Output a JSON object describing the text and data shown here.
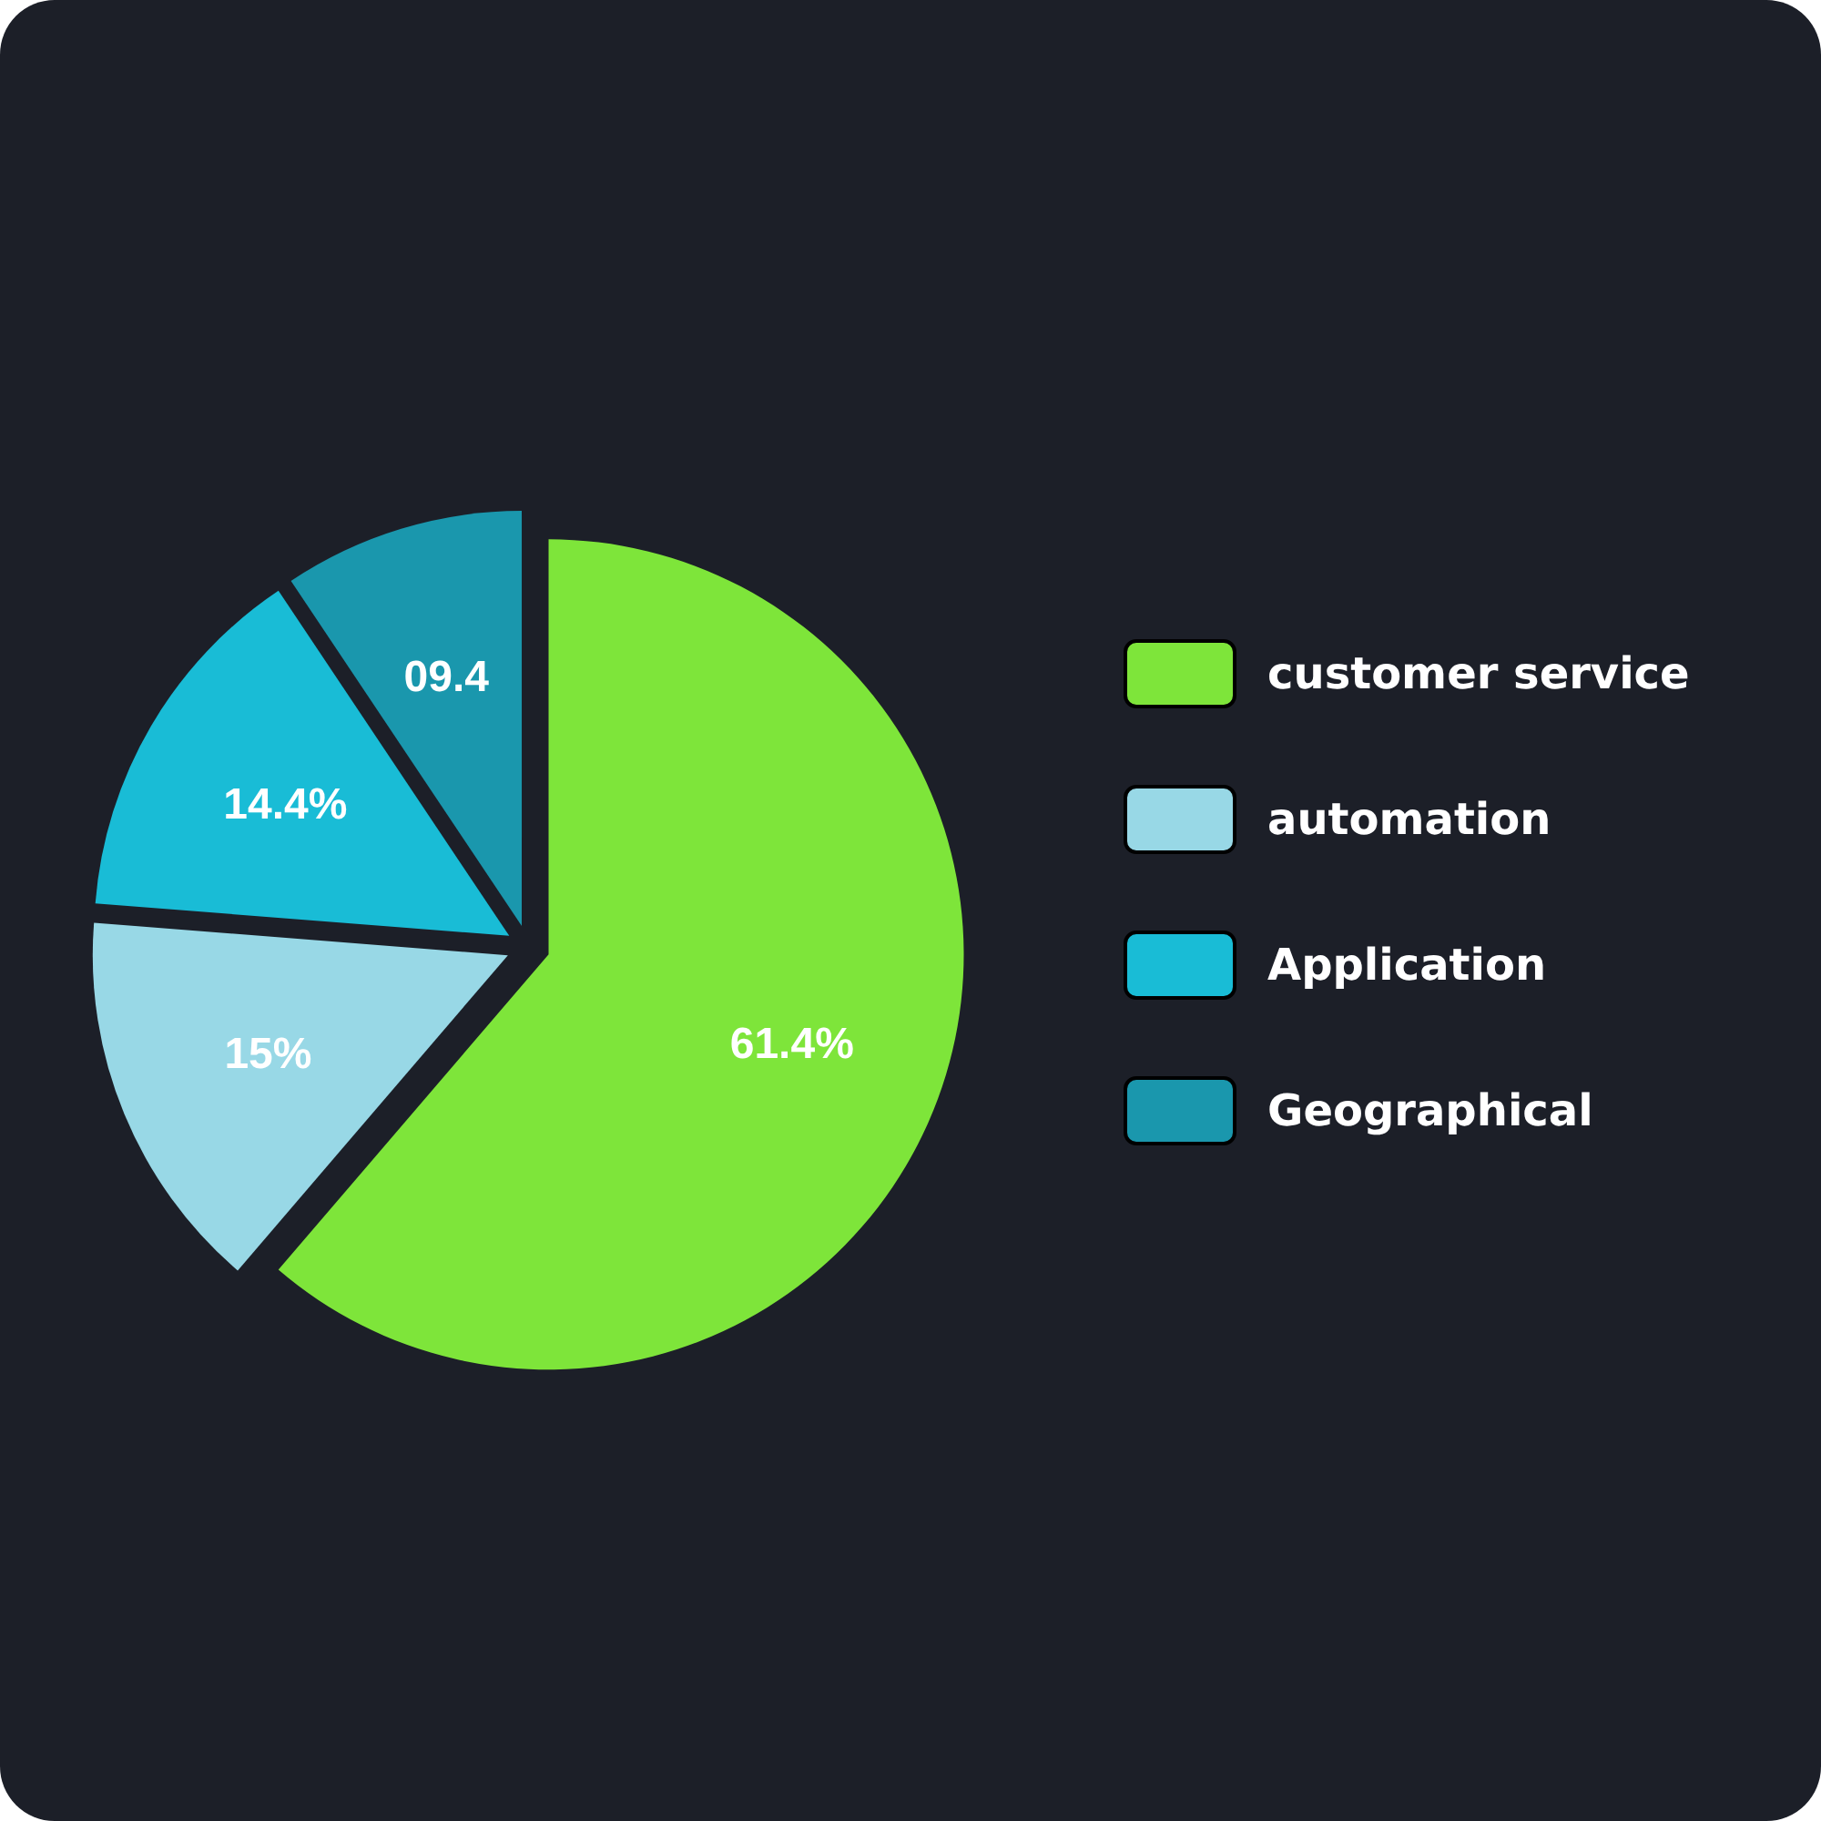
{
  "chart_data": {
    "type": "pie",
    "categories": [
      "customer service",
      "automation",
      "Application",
      "Geographical"
    ],
    "values": [
      61.4,
      15,
      14.4,
      9.4
    ],
    "colors": [
      "#7ee53a",
      "#98d8e6",
      "#19bcd6",
      "#1a97ad"
    ],
    "value_labels": [
      "61.4%",
      "15%",
      "14.4%",
      "09.4"
    ],
    "legend": "right"
  }
}
